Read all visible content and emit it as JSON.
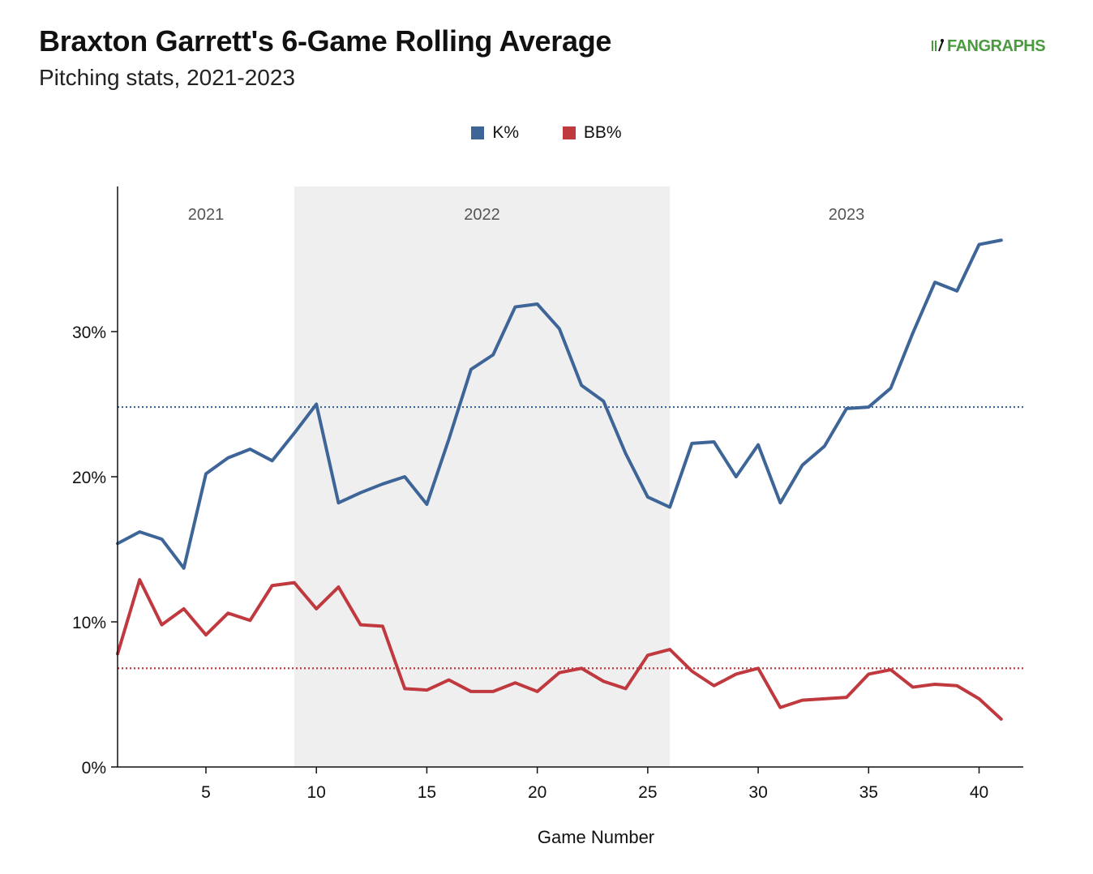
{
  "title": "Braxton Garrett's 6-Game Rolling Average",
  "subtitle": "Pitching stats, 2021-2023",
  "logo_text": "FANGRAPHS",
  "colors": {
    "k": "#3e6598",
    "bb": "#c0393f",
    "season_band": "#efefef",
    "logo": "#4a9a3f"
  },
  "chart_data": {
    "type": "line",
    "xlabel": "Game Number",
    "ylabel": "",
    "xlim": [
      1,
      42
    ],
    "ylim": [
      0,
      0.4
    ],
    "x_ticks": [
      5,
      10,
      15,
      20,
      25,
      30,
      35,
      40
    ],
    "y_ticks": [
      0,
      0.1,
      0.2,
      0.3
    ],
    "y_tick_labels": [
      "0%",
      "10%",
      "20%",
      "30%"
    ],
    "legend_position": "top-center",
    "seasons": [
      {
        "label": "2021",
        "start": 1,
        "end": 9,
        "shaded": false
      },
      {
        "label": "2022",
        "start": 9,
        "end": 26,
        "shaded": true
      },
      {
        "label": "2023",
        "start": 26,
        "end": 42,
        "shaded": false
      }
    ],
    "x": [
      1,
      2,
      3,
      4,
      5,
      6,
      7,
      8,
      9,
      10,
      11,
      12,
      13,
      14,
      15,
      16,
      17,
      18,
      19,
      20,
      21,
      22,
      23,
      24,
      25,
      26,
      27,
      28,
      29,
      30,
      31,
      32,
      33,
      34,
      35,
      36,
      37,
      38,
      39,
      40,
      41
    ],
    "series": [
      {
        "name": "K%",
        "color": "#3e6598",
        "average": 0.248,
        "values": [
          0.154,
          0.162,
          0.157,
          0.137,
          0.202,
          0.213,
          0.219,
          0.211,
          0.23,
          0.25,
          0.182,
          0.189,
          0.195,
          0.2,
          0.181,
          0.226,
          0.274,
          0.284,
          0.317,
          0.319,
          0.302,
          0.263,
          0.252,
          0.216,
          0.186,
          0.179,
          0.223,
          0.224,
          0.2,
          0.222,
          0.182,
          0.208,
          0.221,
          0.247,
          0.248,
          0.261,
          0.299,
          0.334,
          0.328,
          0.36,
          0.363
        ]
      },
      {
        "name": "BB%",
        "color": "#c0393f",
        "average": 0.068,
        "values": [
          0.078,
          0.129,
          0.098,
          0.109,
          0.091,
          0.106,
          0.101,
          0.125,
          0.127,
          0.109,
          0.124,
          0.098,
          0.097,
          0.054,
          0.053,
          0.06,
          0.052,
          0.052,
          0.058,
          0.052,
          0.065,
          0.068,
          0.059,
          0.054,
          0.077,
          0.081,
          0.066,
          0.056,
          0.064,
          0.068,
          0.041,
          0.046,
          0.047,
          0.048,
          0.064,
          0.067,
          0.055,
          0.057,
          0.056,
          0.047,
          0.033
        ]
      }
    ]
  }
}
